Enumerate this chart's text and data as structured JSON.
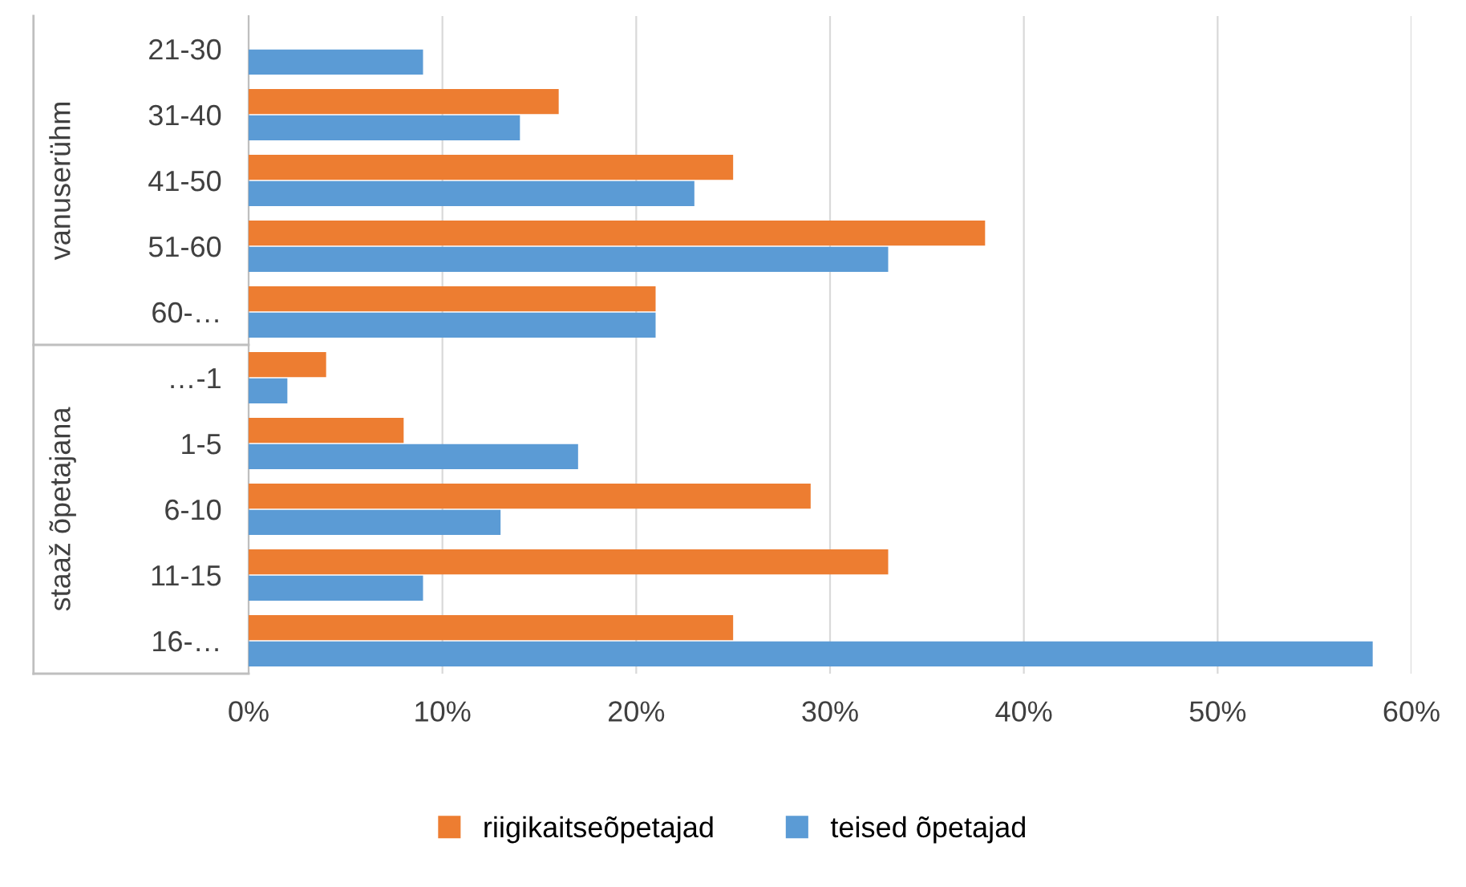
{
  "chart_data": {
    "type": "bar",
    "orientation": "horizontal",
    "categories": [
      "21-30",
      "31-40",
      "41-50",
      "51-60",
      "60-…",
      "…-1",
      "1-5",
      "6-10",
      "11-15",
      "16-…"
    ],
    "series": [
      {
        "name": "riigikaitseõpetajad",
        "color": "#ed7d31",
        "values": [
          null,
          16,
          25,
          38,
          21,
          4,
          8,
          29,
          33,
          25
        ]
      },
      {
        "name": "teised õpetajad",
        "color": "#5b9bd5",
        "values": [
          9,
          14,
          23,
          33,
          21,
          2,
          17,
          13,
          9,
          58
        ]
      }
    ],
    "xlim": [
      0,
      60
    ],
    "xticks": [
      {
        "value": 0,
        "label": "0%"
      },
      {
        "value": 10,
        "label": "10%"
      },
      {
        "value": 20,
        "label": "20%"
      },
      {
        "value": 30,
        "label": "30%"
      },
      {
        "value": 40,
        "label": "40%"
      },
      {
        "value": 50,
        "label": "50%"
      },
      {
        "value": 60,
        "label": "60%"
      }
    ],
    "annotations": [
      "vanuserühm",
      "staaž õpetajana"
    ],
    "grid": "x",
    "legend": "bottom"
  }
}
